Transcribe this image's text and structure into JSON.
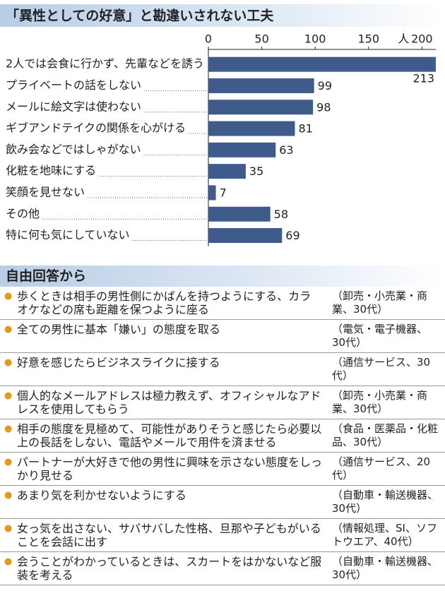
{
  "chart_data": {
    "type": "bar",
    "orientation": "horizontal",
    "title": "「異性としての好意」と勘違いされない工夫",
    "unit": "人",
    "categories": [
      "2人では会食に行かず、先輩などを誘う",
      "プライベートの話をしない",
      "メールに絵文字は使わない",
      "ギブアンドテイクの関係を心がける",
      "飲み会などではしゃがない",
      "化粧を地味にする",
      "笑顔を見せない",
      "その他",
      "特に何も気にしていない"
    ],
    "values": [
      213,
      99,
      98,
      81,
      63,
      35,
      7,
      58,
      69
    ],
    "color": "#3f5b8c",
    "xlim": [
      0,
      213
    ],
    "xticks": [
      0,
      50,
      100,
      150,
      200
    ]
  },
  "free_answers": {
    "title": "自由回答から",
    "items": [
      {
        "text": "歩くときは相手の男性側にかばんを持つようにする、カラオケなどの席も距離を保つように座る",
        "source": "（卸売・小売業・商業、30代）"
      },
      {
        "text": "全ての男性に基本「嫌い」の態度を取る",
        "source": "（電気・電子機器、30代）"
      },
      {
        "text": "好意を感じたらビジネスライクに接する",
        "source": "（通信サービス、30代）"
      },
      {
        "text": "個人的なメールアドレスは極力教えず、オフィシャルなアドレスを使用してもらう",
        "source": "（卸売・小売業・商業、30代）"
      },
      {
        "text": "相手の態度を見極めて、可能性がありそうと感じたら必要以上の長話をしない、電話やメールで用件を済ませる",
        "source": "（食品・医薬品・化粧品、30代）"
      },
      {
        "text": "パートナーが大好きで他の男性に興味を示さない態度をしっかり見せる",
        "source": "（通信サービス、20代）"
      },
      {
        "text": "あまり気を利かせないようにする",
        "source": "（自動車・輸送機器、30代）"
      },
      {
        "text": "女っ気を出さない、サバサバした性格、旦那や子どもがいることを会話に出す",
        "source": "（情報処理、SI、ソフトウエア、40代）"
      },
      {
        "text": "会うことがわかっているときは、スカートをはかないなど服装を考える",
        "source": "（自動車・輸送機器、30代）"
      }
    ]
  }
}
